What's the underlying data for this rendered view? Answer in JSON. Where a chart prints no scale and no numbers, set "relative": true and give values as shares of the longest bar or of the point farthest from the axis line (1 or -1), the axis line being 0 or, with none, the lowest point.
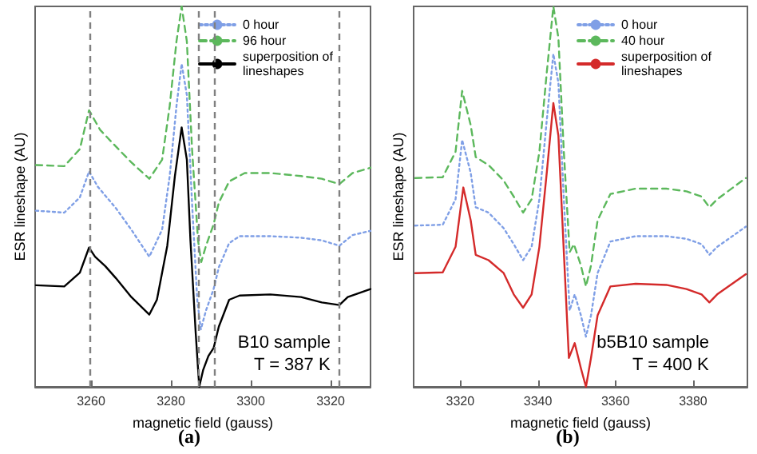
{
  "chart_data": [
    {
      "type": "line",
      "title": "(a)",
      "xlabel": "magnetic field (gauss)",
      "ylabel": "ESR lineshape (AU)",
      "relative": true,
      "xlim": [
        3246,
        3330
      ],
      "xticks": [
        3260,
        3280,
        3300,
        3320
      ],
      "tick_labels": "x",
      "grid": false,
      "legend": "top right",
      "marker": "none",
      "series": [
        {
          "name": "0 hour",
          "color": "#7f9fe6",
          "line_style": "dotted",
          "x": [
            3246.2,
            3253.3,
            3257.2,
            3259.5,
            3261.7,
            3266.2,
            3270.1,
            3274.6,
            3277.8,
            3279.7,
            3281.4,
            3282.7,
            3284.0,
            3285.3,
            3286.6,
            3287.5,
            3288.8,
            3290.7,
            3292.0,
            3294.6,
            3297.2,
            3304.9,
            3312.6,
            3317.8,
            3322.2,
            3325.5,
            3330
          ],
          "values": [
            0.463,
            0.458,
            0.498,
            0.566,
            0.526,
            0.47,
            0.413,
            0.342,
            0.413,
            0.554,
            0.738,
            0.849,
            0.767,
            0.484,
            0.229,
            0.151,
            0.201,
            0.257,
            0.314,
            0.378,
            0.396,
            0.396,
            0.392,
            0.385,
            0.371,
            0.399,
            0.41
          ]
        },
        {
          "name": "96 hour",
          "color": "#5cb85c",
          "line_style": "dashed",
          "x": [
            3246.2,
            3253.3,
            3257.2,
            3259.5,
            3262.3,
            3266.2,
            3270.1,
            3274.6,
            3277.8,
            3279.7,
            3281.4,
            3282.7,
            3284.0,
            3285.3,
            3286.8,
            3287.6,
            3288.8,
            3290.7,
            3292.0,
            3294.6,
            3298.5,
            3304.9,
            3312.6,
            3317.8,
            3322.2,
            3325.5,
            3330
          ],
          "values": [
            0.583,
            0.58,
            0.625,
            0.727,
            0.675,
            0.632,
            0.59,
            0.547,
            0.597,
            0.738,
            0.908,
            1,
            0.908,
            0.625,
            0.385,
            0.328,
            0.371,
            0.427,
            0.484,
            0.54,
            0.562,
            0.562,
            0.554,
            0.547,
            0.533,
            0.562,
            0.576
          ]
        },
        {
          "name": "superposition of lineshapes",
          "color": "#000000",
          "line_style": "solid",
          "x": [
            3246.2,
            3253.3,
            3257.2,
            3259.5,
            3261.0,
            3263.6,
            3266.2,
            3270.1,
            3274.6,
            3276.5,
            3279.1,
            3281.0,
            3282.7,
            3284.0,
            3284.9,
            3286.2,
            3287.1,
            3288.1,
            3289.4,
            3290.7,
            3292.0,
            3294.6,
            3297.2,
            3304.9,
            3312.6,
            3317.8,
            3322.2,
            3324.3,
            3330
          ],
          "values": [
            0.267,
            0.264,
            0.3,
            0.366,
            0.342,
            0.317,
            0.286,
            0.236,
            0.19,
            0.229,
            0.371,
            0.554,
            0.682,
            0.597,
            0.385,
            0.144,
            0,
            0.045,
            0.081,
            0.102,
            0.158,
            0.229,
            0.24,
            0.243,
            0.236,
            0.222,
            0.215,
            0.236,
            0.257
          ]
        }
      ],
      "ref_lines": [
        {
          "axis": "x",
          "value": 3259.5,
          "color": "#808080",
          "line_style": "dashed"
        },
        {
          "axis": "x",
          "value": 3287.1,
          "color": "#808080",
          "line_style": "dashed"
        },
        {
          "axis": "x",
          "value": 3291.0,
          "color": "#808080",
          "line_style": "dashed"
        },
        {
          "axis": "x",
          "value": 3322.2,
          "color": "#808080",
          "line_style": "dashed"
        }
      ],
      "annotations": [
        "B10 sample",
        "T = 387 K"
      ]
    },
    {
      "type": "line",
      "title": "(b)",
      "xlabel": "magnetic field (gauss)",
      "ylabel": "ESR lineshape (AU)",
      "relative": true,
      "xlim": [
        3308,
        3394
      ],
      "xticks": [
        3320,
        3340,
        3360,
        3380
      ],
      "tick_labels": "x",
      "grid": false,
      "legend": "top right",
      "marker": "none",
      "series": [
        {
          "name": "0 hour",
          "color": "#7f9fe6",
          "line_style": "dotted",
          "x": [
            3308.4,
            3315.5,
            3318.8,
            3320.5,
            3322.7,
            3324.0,
            3327.3,
            3331.2,
            3333.8,
            3336.2,
            3338.4,
            3340.4,
            3342.3,
            3344.0,
            3345.3,
            3346.7,
            3348.2,
            3349.5,
            3351.1,
            3352.4,
            3353.7,
            3355.4,
            3358.7,
            3365.2,
            3373.1,
            3378.3,
            3382.2,
            3384.2,
            3386.2,
            3393.6
          ],
          "values": [
            0.424,
            0.426,
            0.493,
            0.649,
            0.563,
            0.472,
            0.458,
            0.417,
            0.375,
            0.333,
            0.368,
            0.493,
            0.701,
            0.875,
            0.799,
            0.493,
            0.201,
            0.243,
            0.188,
            0.132,
            0.188,
            0.299,
            0.382,
            0.396,
            0.396,
            0.389,
            0.375,
            0.347,
            0.368,
            0.421
          ]
        },
        {
          "name": "40 hour",
          "color": "#5cb85c",
          "line_style": "dashed",
          "x": [
            3308.4,
            3315.5,
            3318.8,
            3320.5,
            3322.7,
            3324.0,
            3327.3,
            3331.2,
            3333.8,
            3336.2,
            3338.4,
            3340.4,
            3342.3,
            3344.0,
            3345.3,
            3346.7,
            3348.2,
            3349.3,
            3351.1,
            3352.4,
            3353.7,
            3355.4,
            3358.7,
            3365.2,
            3373.1,
            3378.3,
            3382.2,
            3384.2,
            3386.2,
            3393.6
          ],
          "values": [
            0.549,
            0.551,
            0.618,
            0.778,
            0.688,
            0.604,
            0.583,
            0.542,
            0.5,
            0.458,
            0.493,
            0.618,
            0.826,
            1,
            0.917,
            0.618,
            0.354,
            0.375,
            0.319,
            0.264,
            0.319,
            0.438,
            0.507,
            0.521,
            0.521,
            0.514,
            0.5,
            0.472,
            0.493,
            0.549
          ]
        },
        {
          "name": "superposition of lineshapes",
          "color": "#d42a2a",
          "line_style": "solid",
          "x": [
            3308.4,
            3315.5,
            3318.8,
            3320.8,
            3322.7,
            3324.0,
            3327.3,
            3331.2,
            3333.8,
            3336.2,
            3338.4,
            3340.4,
            3342.3,
            3344.0,
            3345.3,
            3346.7,
            3348.0,
            3349.5,
            3351.1,
            3352.4,
            3353.7,
            3355.4,
            3358.7,
            3365.2,
            3373.1,
            3378.3,
            3382.2,
            3384.2,
            3386.2,
            3393.6
          ],
          "values": [
            0.299,
            0.301,
            0.368,
            0.524,
            0.438,
            0.347,
            0.333,
            0.299,
            0.243,
            0.208,
            0.243,
            0.368,
            0.563,
            0.746,
            0.66,
            0.354,
            0.076,
            0.115,
            0.049,
            0,
            0.076,
            0.188,
            0.264,
            0.271,
            0.268,
            0.257,
            0.243,
            0.222,
            0.243,
            0.296
          ]
        }
      ],
      "annotations": [
        "b5B10 sample",
        "T = 400 K"
      ]
    }
  ]
}
